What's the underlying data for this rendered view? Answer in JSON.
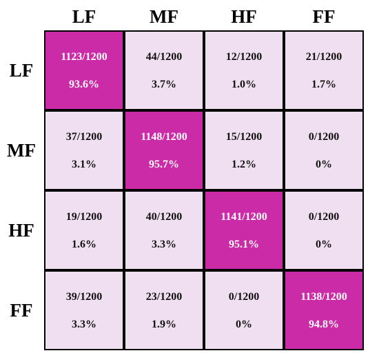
{
  "chart_data": {
    "type": "heatmap",
    "x_labels": [
      "LF",
      "MF",
      "HF",
      "FF"
    ],
    "y_labels": [
      "LF",
      "MF",
      "HF",
      "FF"
    ],
    "counts": [
      [
        "1123/1200",
        "44/1200",
        "12/1200",
        "21/1200"
      ],
      [
        "37/1200",
        "1148/1200",
        "15/1200",
        "0/1200"
      ],
      [
        "19/1200",
        "40/1200",
        "1141/1200",
        "0/1200"
      ],
      [
        "39/1200",
        "23/1200",
        "0/1200",
        "1138/1200"
      ]
    ],
    "percentages": [
      [
        "93.6%",
        "3.7%",
        "1.0%",
        "1.7%"
      ],
      [
        "3.1%",
        "95.7%",
        "1.2%",
        "0%"
      ],
      [
        "1.6%",
        "3.3%",
        "95.1%",
        "0%"
      ],
      [
        "3.3%",
        "1.9%",
        "0%",
        "94.8%"
      ]
    ],
    "values": [
      [
        93.6,
        3.7,
        1.0,
        1.7
      ],
      [
        3.1,
        95.7,
        1.2,
        0
      ],
      [
        1.6,
        3.3,
        95.1,
        0
      ],
      [
        3.3,
        1.9,
        0,
        94.8
      ]
    ],
    "colors": {
      "high": "#cc2ba8",
      "low": "#f0dff0",
      "border": "#000000"
    }
  }
}
